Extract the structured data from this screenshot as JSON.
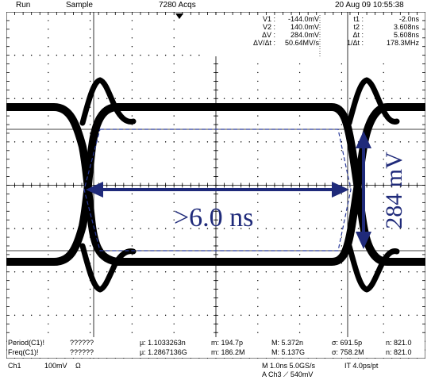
{
  "header": {
    "run_state": "Run",
    "acq_mode": "Sample",
    "acq_count": "7280 Acqs",
    "datetime": "20 Aug 09 10:55:38"
  },
  "cursors": {
    "voltage": [
      {
        "label": "V1 :",
        "value": "-144.0mV"
      },
      {
        "label": "V2 :",
        "value": "140.0mV"
      },
      {
        "label": "ΔV :",
        "value": "284.0mV"
      },
      {
        "label": "ΔV/Δt :",
        "value": "50.64MV/s"
      }
    ],
    "time": [
      {
        "label": "t1 :",
        "value": "-2.0ns"
      },
      {
        "label": "t2 :",
        "value": "3.608ns"
      },
      {
        "label": "Δt :",
        "value": "5.608ns"
      },
      {
        "label": "1/Δt :",
        "value": "178.3MHz"
      }
    ]
  },
  "annotations": {
    "eye_width": ">6.0 ns",
    "eye_height": "284 mV"
  },
  "measurements": [
    {
      "name": "Period(C1)!",
      "value": "??????",
      "mu": "µ: 1.1033263n",
      "m": "m: 194.7p",
      "M": "M: 5.372n",
      "sigma": "σ: 691.5p",
      "n": "n: 821.0"
    },
    {
      "name": "Freq(C1)!",
      "value": "??????",
      "mu": "µ: 1.2867136G",
      "m": "m: 186.2M",
      "M": "M: 5.137G",
      "sigma": "σ: 758.2M",
      "n": "n: 821.0"
    }
  ],
  "footer": {
    "channel": "Ch1",
    "scale": "100mV",
    "coupling": "Ω",
    "timebase": "M 1.0ns 5.0GS/s",
    "interp": "IT 4.0ps/pt",
    "trigger": "A  Ch3  ⟋  540mV"
  },
  "colors": {
    "trace": "#000000",
    "annotation": "#1f2a7a",
    "background": "#ffffff"
  }
}
